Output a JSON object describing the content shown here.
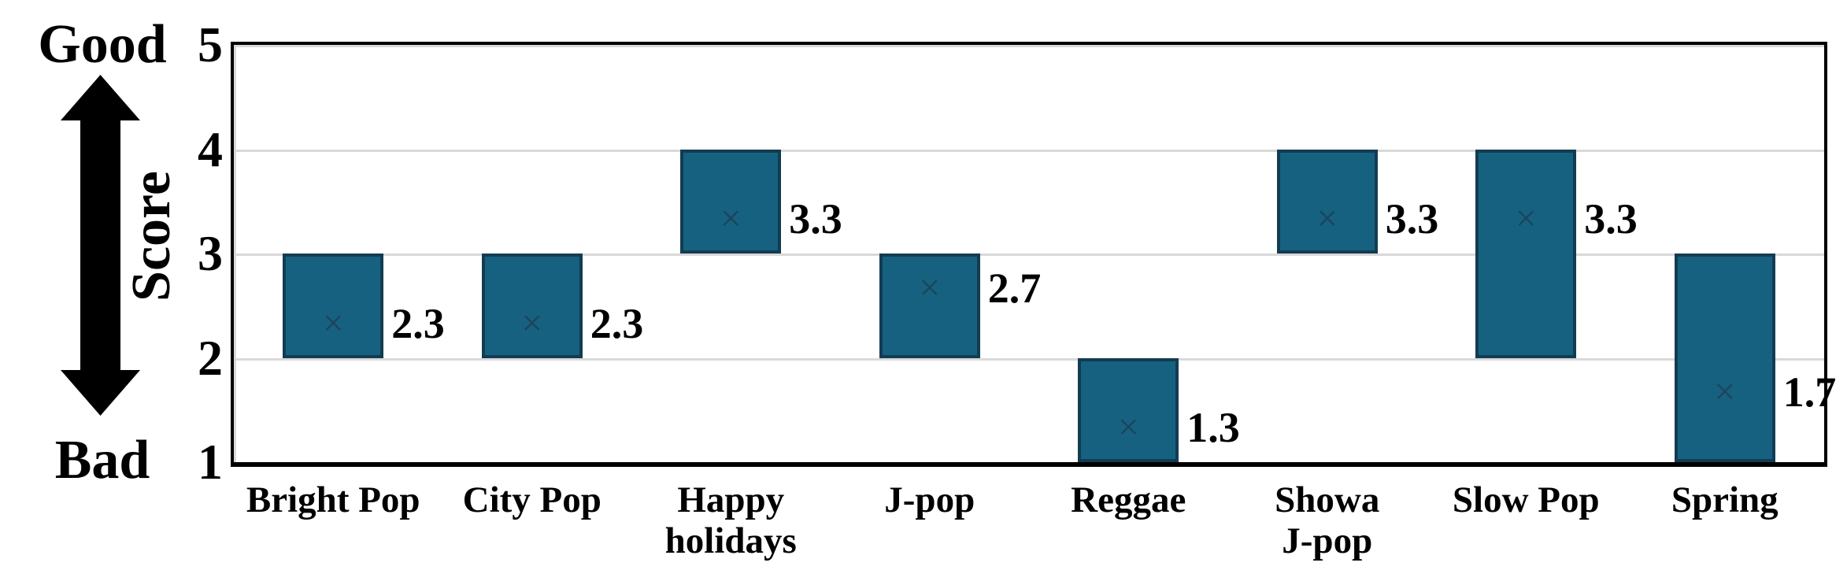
{
  "chart_data": {
    "type": "bar",
    "subtype": "floating-range-bar-with-mean-marker",
    "title": "",
    "xlabel": "",
    "ylabel": "Score",
    "annotations": {
      "top": "Good",
      "bottom": "Bad"
    },
    "categories": [
      "Bright Pop",
      "City Pop",
      "Happy holidays",
      "J-pop",
      "Reggae",
      "Showa J-pop",
      "Slow Pop",
      "Spring"
    ],
    "category_label_lines": [
      [
        "Bright Pop"
      ],
      [
        "City Pop"
      ],
      [
        "Happy",
        "holidays"
      ],
      [
        "J-pop"
      ],
      [
        "Reggae"
      ],
      [
        "Showa",
        "J-pop"
      ],
      [
        "Slow Pop"
      ],
      [
        "Spring"
      ]
    ],
    "series": [
      {
        "name": "score range low",
        "values": [
          2,
          2,
          3,
          2,
          1,
          3,
          2,
          1
        ]
      },
      {
        "name": "score range high",
        "values": [
          3,
          3,
          4,
          3,
          2,
          4,
          4,
          3
        ]
      },
      {
        "name": "mean score",
        "values": [
          2.33,
          2.33,
          3.33,
          2.67,
          1.33,
          3.33,
          3.33,
          1.67
        ]
      }
    ],
    "value_labels": [
      "2.3",
      "2.3",
      "3.3",
      "2.7",
      "1.3",
      "3.3",
      "3.3",
      "1.7"
    ],
    "marker_glyph": "×",
    "ylim": [
      1,
      5
    ],
    "yticks": [
      5,
      4,
      3,
      2,
      1
    ],
    "grid": true,
    "legend": false
  },
  "colors": {
    "bar_fill": "#176180",
    "bar_border": "#123C52",
    "marker": "#1B455C",
    "gridline": "#D9D9D9",
    "axis_frame": "#000000",
    "text": "#000000",
    "background": "#FFFFFF"
  }
}
